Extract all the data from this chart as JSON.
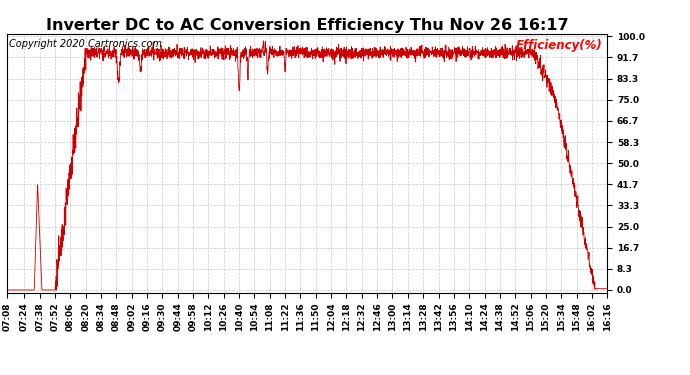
{
  "title": "Inverter DC to AC Conversion Efficiency Thu Nov 26 16:17",
  "copyright_text": "Copyright 2020 Cartronics.com",
  "ylabel": "Efficiency(%)",
  "background_color": "#ffffff",
  "line_color": "#cc0000",
  "grid_color": "#c8c8c8",
  "title_fontsize": 11.5,
  "ylabel_fontsize": 8.5,
  "copyright_fontsize": 7,
  "tick_fontsize": 6.5,
  "ytick_values": [
    0.0,
    8.3,
    16.7,
    25.0,
    33.3,
    41.7,
    50.0,
    58.3,
    66.7,
    75.0,
    83.3,
    91.7,
    100.0
  ],
  "ymin": 0.0,
  "ymax": 100.0,
  "time_labels": [
    "07:08",
    "07:24",
    "07:38",
    "07:52",
    "08:06",
    "08:20",
    "08:34",
    "08:48",
    "09:02",
    "09:16",
    "09:30",
    "09:44",
    "09:58",
    "10:12",
    "10:26",
    "10:40",
    "10:54",
    "11:08",
    "11:22",
    "11:36",
    "11:50",
    "12:04",
    "12:18",
    "12:32",
    "12:46",
    "13:00",
    "13:14",
    "13:28",
    "13:42",
    "13:56",
    "14:10",
    "14:24",
    "14:38",
    "14:52",
    "15:06",
    "15:20",
    "15:34",
    "15:48",
    "16:02",
    "16:16"
  ]
}
